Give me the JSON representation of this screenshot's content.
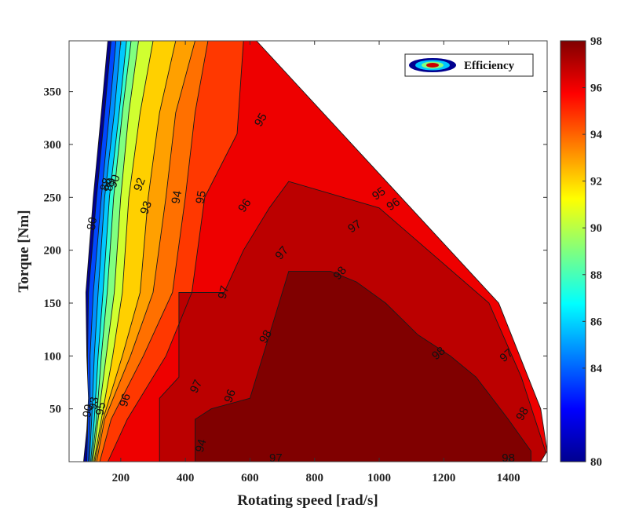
{
  "chart_data": {
    "type": "heatmap",
    "subtype": "filled-contour efficiency map",
    "title": "",
    "xlabel": "Rotating speed [rad/s]",
    "ylabel": "Torque [Nm]",
    "xlim": [
      40,
      1520
    ],
    "ylim": [
      0,
      398
    ],
    "xticks": [
      200,
      400,
      600,
      800,
      1000,
      1200,
      1400
    ],
    "yticks": [
      50,
      100,
      150,
      200,
      250,
      300,
      350
    ],
    "grid": false,
    "legend": {
      "label": "Efficiency",
      "position": "top-right"
    },
    "colorbar": {
      "range": [
        80,
        98
      ],
      "ticks": [
        80,
        84,
        86,
        88,
        90,
        92,
        94,
        96,
        98
      ],
      "colormap": "jet",
      "position": "right"
    },
    "operating_envelope": [
      [
        85,
        0
      ],
      [
        95,
        30
      ],
      [
        100,
        60
      ],
      [
        95,
        100
      ],
      [
        92,
        160
      ],
      [
        115,
        250
      ],
      [
        140,
        330
      ],
      [
        160,
        398
      ],
      [
        620,
        398
      ],
      [
        1370,
        150
      ],
      [
        1500,
        50
      ],
      [
        1520,
        10
      ],
      [
        1500,
        0
      ]
    ],
    "contour_levels": [
      {
        "level": 80,
        "color": "#00008f"
      },
      {
        "level": 82,
        "color": "#0010c8"
      },
      {
        "level": 84,
        "color": "#0048ff"
      },
      {
        "level": 86,
        "color": "#0090ff"
      },
      {
        "level": 88,
        "color": "#00c8ff"
      },
      {
        "level": 89,
        "color": "#30ffd0"
      },
      {
        "level": 90,
        "color": "#80ff80"
      },
      {
        "level": 91,
        "color": "#d0ff30"
      },
      {
        "level": 92,
        "color": "#ffd000"
      },
      {
        "level": 93,
        "color": "#ffa000"
      },
      {
        "level": 94,
        "color": "#ff7000"
      },
      {
        "level": 95,
        "color": "#ff3800"
      },
      {
        "level": 96,
        "color": "#ee0000"
      },
      {
        "level": 97,
        "color": "#bb0000"
      },
      {
        "level": 98,
        "color": "#800000"
      }
    ],
    "contour_boundaries": [
      {
        "level": 82,
        "points": [
          [
            95,
            0
          ],
          [
            98,
            40
          ],
          [
            97,
            100
          ],
          [
            100,
            160
          ],
          [
            125,
            250
          ],
          [
            150,
            330
          ],
          [
            170,
            398
          ]
        ]
      },
      {
        "level": 84,
        "points": [
          [
            100,
            0
          ],
          [
            105,
            40
          ],
          [
            105,
            100
          ],
          [
            115,
            160
          ],
          [
            140,
            250
          ],
          [
            165,
            330
          ],
          [
            185,
            398
          ]
        ]
      },
      {
        "level": 86,
        "points": [
          [
            103,
            0
          ],
          [
            110,
            40
          ],
          [
            118,
            100
          ],
          [
            130,
            160
          ],
          [
            150,
            250
          ],
          [
            180,
            330
          ],
          [
            200,
            398
          ]
        ]
      },
      {
        "level": 88,
        "points": [
          [
            107,
            0
          ],
          [
            118,
            40
          ],
          [
            130,
            100
          ],
          [
            145,
            160
          ],
          [
            165,
            250
          ],
          [
            195,
            330
          ],
          [
            218,
            398
          ]
        ]
      },
      {
        "level": 89,
        "points": [
          [
            110,
            0
          ],
          [
            125,
            40
          ],
          [
            140,
            100
          ],
          [
            158,
            160
          ],
          [
            178,
            250
          ],
          [
            205,
            330
          ],
          [
            232,
            398
          ]
        ]
      },
      {
        "level": 90,
        "points": [
          [
            113,
            0
          ],
          [
            130,
            40
          ],
          [
            155,
            100
          ],
          [
            180,
            160
          ],
          [
            200,
            250
          ],
          [
            225,
            330
          ],
          [
            255,
            398
          ]
        ]
      },
      {
        "level": 91,
        "points": [
          [
            117,
            0
          ],
          [
            140,
            40
          ],
          [
            175,
            100
          ],
          [
            205,
            160
          ],
          [
            225,
            250
          ],
          [
            260,
            330
          ],
          [
            300,
            398
          ]
        ]
      },
      {
        "level": 92,
        "points": [
          [
            120,
            0
          ],
          [
            145,
            40
          ],
          [
            205,
            100
          ],
          [
            260,
            160
          ],
          [
            285,
            250
          ],
          [
            320,
            330
          ],
          [
            370,
            398
          ]
        ]
      },
      {
        "level": 93,
        "points": [
          [
            125,
            0
          ],
          [
            150,
            40
          ],
          [
            230,
            100
          ],
          [
            300,
            160
          ],
          [
            340,
            250
          ],
          [
            370,
            330
          ],
          [
            430,
            398
          ]
        ]
      },
      {
        "level": 94,
        "points": [
          [
            135,
            0
          ],
          [
            170,
            40
          ],
          [
            270,
            100
          ],
          [
            360,
            160
          ],
          [
            400,
            250
          ],
          [
            430,
            330
          ],
          [
            470,
            398
          ]
        ]
      },
      {
        "level": 95,
        "points": [
          [
            160,
            0
          ],
          [
            220,
            40
          ],
          [
            340,
            100
          ],
          [
            420,
            160
          ],
          [
            460,
            250
          ],
          [
            560,
            310
          ],
          [
            580,
            398
          ]
        ]
      },
      {
        "level": 96,
        "points": [
          [
            320,
            0
          ],
          [
            320,
            60
          ],
          [
            380,
            80
          ],
          [
            380,
            160
          ],
          [
            520,
            160
          ],
          [
            580,
            200
          ],
          [
            660,
            240
          ],
          [
            720,
            265
          ],
          [
            1000,
            240
          ],
          [
            1340,
            150
          ],
          [
            1440,
            80
          ],
          [
            1520,
            5
          ],
          [
            1520,
            0
          ]
        ]
      },
      {
        "level": 97,
        "points": [
          [
            430,
            0
          ],
          [
            430,
            40
          ],
          [
            480,
            50
          ],
          [
            600,
            60
          ],
          [
            680,
            140
          ],
          [
            720,
            180
          ],
          [
            850,
            180
          ],
          [
            930,
            170
          ],
          [
            1020,
            150
          ],
          [
            1120,
            120
          ],
          [
            1220,
            100
          ],
          [
            1300,
            80
          ],
          [
            1400,
            40
          ],
          [
            1470,
            10
          ],
          [
            1470,
            0
          ]
        ]
      }
    ],
    "contour_labels": [
      {
        "text": "80",
        "x": 113,
        "y": 225,
        "angle": -80
      },
      {
        "text": "88",
        "x": 155,
        "y": 262,
        "angle": -75
      },
      {
        "text": "89",
        "x": 168,
        "y": 262,
        "angle": -75
      },
      {
        "text": "90",
        "x": 182,
        "y": 265,
        "angle": -70
      },
      {
        "text": "92",
        "x": 260,
        "y": 262,
        "angle": -70
      },
      {
        "text": "93",
        "x": 280,
        "y": 240,
        "angle": -70
      },
      {
        "text": "94",
        "x": 375,
        "y": 250,
        "angle": -80
      },
      {
        "text": "95",
        "x": 450,
        "y": 250,
        "angle": -80
      },
      {
        "text": "96",
        "x": 585,
        "y": 242,
        "angle": -55
      },
      {
        "text": "95",
        "x": 635,
        "y": 323,
        "angle": -60
      },
      {
        "text": "97",
        "x": 700,
        "y": 197,
        "angle": -50
      },
      {
        "text": "97",
        "x": 520,
        "y": 160,
        "angle": -75
      },
      {
        "text": "96",
        "x": 215,
        "y": 58,
        "angle": -75
      },
      {
        "text": "97",
        "x": 435,
        "y": 71,
        "angle": -65
      },
      {
        "text": "96",
        "x": 540,
        "y": 62,
        "angle": -70
      },
      {
        "text": "98",
        "x": 650,
        "y": 118,
        "angle": -60
      },
      {
        "text": "98",
        "x": 880,
        "y": 178,
        "angle": -50
      },
      {
        "text": "95",
        "x": 1000,
        "y": 253,
        "angle": -35
      },
      {
        "text": "96",
        "x": 1045,
        "y": 243,
        "angle": -35
      },
      {
        "text": "97",
        "x": 925,
        "y": 222,
        "angle": -35
      },
      {
        "text": "98",
        "x": 1185,
        "y": 102,
        "angle": -40
      },
      {
        "text": "97",
        "x": 1395,
        "y": 100,
        "angle": -40
      },
      {
        "text": "98",
        "x": 1445,
        "y": 45,
        "angle": -60
      },
      {
        "text": "97",
        "x": 680,
        "y": 3,
        "angle": 0
      },
      {
        "text": "98",
        "x": 1400,
        "y": 3,
        "angle": 0
      },
      {
        "text": "94",
        "x": 450,
        "y": 15,
        "angle": -75
      },
      {
        "text": "93",
        "x": 118,
        "y": 55,
        "angle": -80
      },
      {
        "text": "95",
        "x": 140,
        "y": 50,
        "angle": -80
      },
      {
        "text": "90",
        "x": 100,
        "y": 48,
        "angle": -80
      }
    ]
  }
}
